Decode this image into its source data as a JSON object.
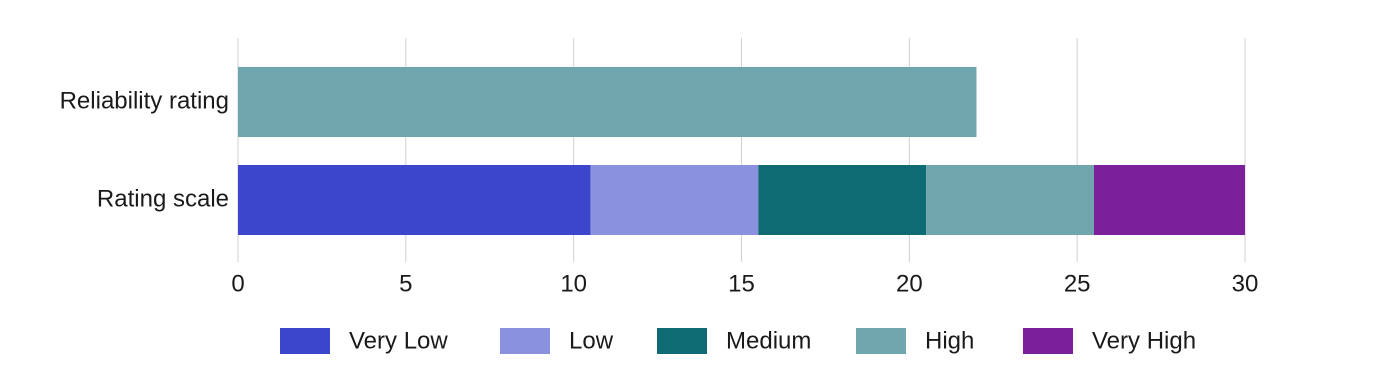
{
  "chart_data": {
    "type": "stacked-barh",
    "categories": [
      "Reliability rating",
      "Rating scale"
    ],
    "series": [
      {
        "name": "Very Low",
        "color": "#3b46cc",
        "values": [
          null,
          10.5
        ]
      },
      {
        "name": "Low",
        "color": "#8a91de",
        "values": [
          null,
          5
        ]
      },
      {
        "name": "Medium",
        "color": "#0f6b73",
        "values": [
          null,
          5
        ]
      },
      {
        "name": "High",
        "color": "#6fa6ae",
        "values": [
          22,
          5
        ]
      },
      {
        "name": "Very High",
        "color": "#7b1f9a",
        "values": [
          null,
          4.5
        ]
      }
    ],
    "xlim": [
      0,
      30
    ],
    "xticks": [
      0,
      5,
      10,
      15,
      20,
      25,
      30
    ],
    "grid": true,
    "legend": "bottom"
  }
}
